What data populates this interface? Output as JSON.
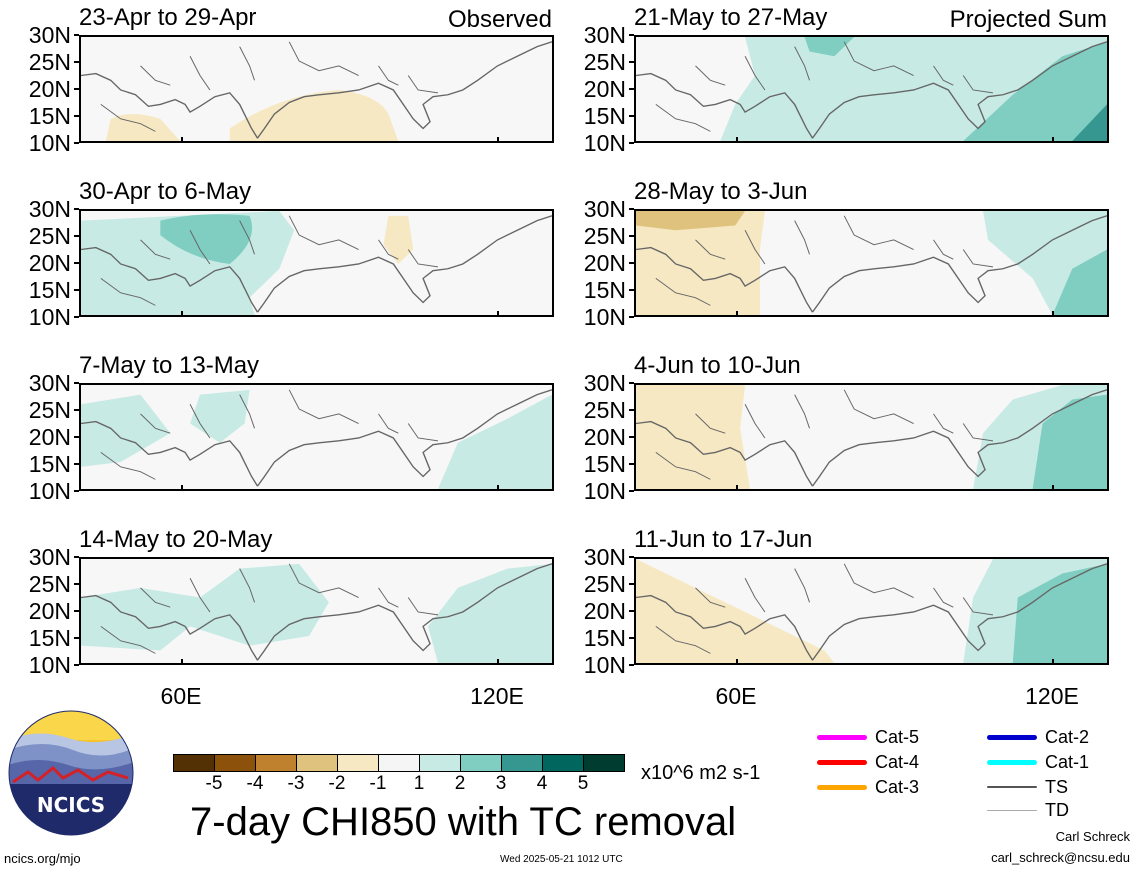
{
  "chart_data": {
    "type": "heatmap",
    "title": "7-day CHI850 with TC removal",
    "units": "x10^6 m2 s-1",
    "x_ticks": [
      "60E",
      "120E"
    ],
    "y_ticks": [
      "30N",
      "25N",
      "20N",
      "15N",
      "10N"
    ],
    "ylim": [
      10,
      30
    ],
    "columns": [
      {
        "header": "Observed",
        "panels": [
          {
            "period": "23-Apr to 29-Apr",
            "dominant_category": "-1 to 1",
            "note": "weak negative (-2 to -1) patches 10N-20N"
          },
          {
            "period": "30-Apr to 6-May",
            "dominant_category": "1 to 2",
            "note": "positive 2 to 3 near 25N 65E; negative near 100E"
          },
          {
            "period": "7-May to 13-May",
            "dominant_category": "-1 to 1",
            "note": "positive 1 to 2 west and east edges"
          },
          {
            "period": "14-May to 20-May",
            "dominant_category": "1 to 2",
            "note": "broad weak positive"
          }
        ]
      },
      {
        "header": "Projected Sum",
        "panels": [
          {
            "period": "21-May to 27-May",
            "dominant_category": "1 to 2",
            "note": "2 to 4 east of 110E"
          },
          {
            "period": "28-May to 3-Jun",
            "dominant_category": "-1 to 1",
            "note": "-2 to -1 west of 70E; positive east"
          },
          {
            "period": "4-Jun to 10-Jun",
            "dominant_category": "-1 to 1",
            "note": "-2 to -1 west; 1 to 3 east"
          },
          {
            "period": "11-Jun to 17-Jun",
            "dominant_category": "-1 to 1",
            "note": "-2 to -1 southwest; 1 to 3 east"
          }
        ]
      }
    ],
    "colorbar": {
      "labels": [
        "-5",
        "-4",
        "-3",
        "-2",
        "-1",
        "1",
        "2",
        "3",
        "4",
        "5"
      ],
      "colors": [
        "#543005",
        "#8c510a",
        "#bf812d",
        "#dfc27d",
        "#f6e8c3",
        "#f5f5f5",
        "#c7eae5",
        "#80cdc1",
        "#35978f",
        "#01665e",
        "#003c30"
      ]
    },
    "legend": [
      {
        "label": "Cat-5",
        "color": "#ff00ff"
      },
      {
        "label": "Cat-4",
        "color": "#ff0000"
      },
      {
        "label": "Cat-3",
        "color": "#ffa500"
      },
      {
        "label": "Cat-2",
        "color": "#0000cd"
      },
      {
        "label": "Cat-1",
        "color": "#00ffff"
      },
      {
        "label": "TS",
        "color": "#555555"
      },
      {
        "label": "TD",
        "color": "#aaaaaa"
      }
    ]
  },
  "footer": {
    "site": "ncics.org/mjo",
    "timestamp": "Wed 2025-05-21 1012 UTC",
    "author": "Carl Schreck",
    "email": "carl_schreck@ncsu.edu",
    "logo_text": "NCICS"
  }
}
